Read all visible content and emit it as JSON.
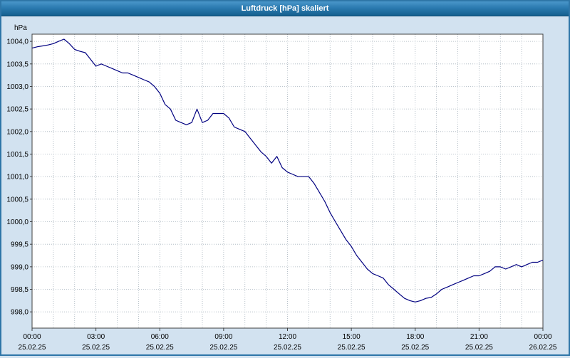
{
  "window": {
    "title": "Luftdruck [hPa] skaliert"
  },
  "chart_data": {
    "type": "line",
    "title": "Luftdruck [hPa] skaliert",
    "unit_label": "hPa",
    "line_color": "#000080",
    "grid_color": "#a8b4be",
    "axis_color": "#404040",
    "plot_background": "#ffffff",
    "xlabel": "",
    "ylabel": "hPa",
    "xlim": [
      0,
      24
    ],
    "ylim": [
      997.64,
      1004.16
    ],
    "grid": true,
    "x_minor_step_hours": 1,
    "x_ticks": [
      {
        "hour": 0,
        "time": "00:00",
        "date": "25.02.25"
      },
      {
        "hour": 3,
        "time": "03:00",
        "date": "25.02.25"
      },
      {
        "hour": 6,
        "time": "06:00",
        "date": "25.02.25"
      },
      {
        "hour": 9,
        "time": "09:00",
        "date": "25.02.25"
      },
      {
        "hour": 12,
        "time": "12:00",
        "date": "25.02.25"
      },
      {
        "hour": 15,
        "time": "15:00",
        "date": "25.02.25"
      },
      {
        "hour": 18,
        "time": "18:00",
        "date": "25.02.25"
      },
      {
        "hour": 21,
        "time": "21:00",
        "date": "25.02.25"
      },
      {
        "hour": 24,
        "time": "00:00",
        "date": "26.02.25"
      }
    ],
    "y_ticks": [
      {
        "value": 998.0,
        "label": "998,0"
      },
      {
        "value": 998.5,
        "label": "998,5"
      },
      {
        "value": 999.0,
        "label": "999,0"
      },
      {
        "value": 999.5,
        "label": "999,5"
      },
      {
        "value": 1000.0,
        "label": "1000,0"
      },
      {
        "value": 1000.5,
        "label": "1000,5"
      },
      {
        "value": 1001.0,
        "label": "1001,0"
      },
      {
        "value": 1001.5,
        "label": "1001,5"
      },
      {
        "value": 1002.0,
        "label": "1002,0"
      },
      {
        "value": 1002.5,
        "label": "1002,5"
      },
      {
        "value": 1003.0,
        "label": "1003,0"
      },
      {
        "value": 1003.5,
        "label": "1003,5"
      },
      {
        "value": 1004.0,
        "label": "1004,0"
      }
    ],
    "series": [
      {
        "name": "Luftdruck",
        "x_start": 0,
        "x_step": 0.25,
        "y": [
          1003.85,
          1003.88,
          1003.9,
          1003.92,
          1003.95,
          1004.0,
          1004.05,
          1003.95,
          1003.82,
          1003.78,
          1003.75,
          1003.6,
          1003.45,
          1003.5,
          1003.45,
          1003.4,
          1003.35,
          1003.3,
          1003.3,
          1003.25,
          1003.2,
          1003.15,
          1003.1,
          1003.0,
          1002.85,
          1002.6,
          1002.5,
          1002.25,
          1002.2,
          1002.15,
          1002.2,
          1002.5,
          1002.2,
          1002.25,
          1002.4,
          1002.4,
          1002.4,
          1002.3,
          1002.1,
          1002.05,
          1002.0,
          1001.85,
          1001.7,
          1001.55,
          1001.45,
          1001.3,
          1001.45,
          1001.2,
          1001.1,
          1001.05,
          1001.0,
          1001.0,
          1001.0,
          1000.85,
          1000.65,
          1000.45,
          1000.2,
          1000.0,
          999.8,
          999.6,
          999.45,
          999.25,
          999.1,
          998.95,
          998.85,
          998.8,
          998.75,
          998.6,
          998.5,
          998.4,
          998.3,
          998.25,
          998.22,
          998.25,
          998.3,
          998.32,
          998.4,
          998.5,
          998.55,
          998.6,
          998.65,
          998.7,
          998.75,
          998.8,
          998.8,
          998.85,
          998.9,
          999.0,
          999.0,
          998.95,
          999.0,
          999.05,
          999.0,
          999.05,
          999.1,
          999.1,
          999.15
        ]
      }
    ]
  }
}
